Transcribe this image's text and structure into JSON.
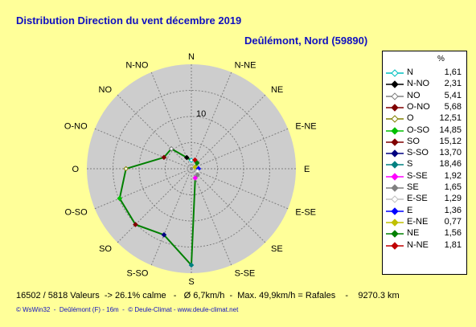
{
  "header": {
    "title": "Distribution Direction du vent   décembre 2019",
    "location": "Deûlémont, Nord (59890)"
  },
  "chart_data": {
    "type": "radar",
    "rlim": [
      0,
      20
    ],
    "ring_label": "10",
    "directions": [
      "N",
      "N-NE",
      "NE",
      "E-NE",
      "E",
      "E-SE",
      "SE",
      "S-SE",
      "S",
      "S-SO",
      "SO",
      "O-SO",
      "O",
      "O-NO",
      "NO",
      "N-NO"
    ],
    "series": [
      {
        "values": [
          1.61,
          1.81,
          1.56,
          0.77,
          1.36,
          1.29,
          1.65,
          1.92,
          18.46,
          13.7,
          15.12,
          14.85,
          12.51,
          5.68,
          5.41,
          2.31
        ]
      }
    ],
    "line_color": "#008000",
    "disc_color": "#cdcdcd",
    "grid_color": "#808080"
  },
  "legend": {
    "unit": "%",
    "items": [
      {
        "name": "N",
        "value": "1,61",
        "color": "#00c0c0",
        "marker": "diamond-open"
      },
      {
        "name": "N-NO",
        "value": "2,31",
        "color": "#000000",
        "marker": "diamond"
      },
      {
        "name": "NO",
        "value": "5,41",
        "color": "#808080",
        "marker": "diamond-open"
      },
      {
        "name": "O-NO",
        "value": "5,68",
        "color": "#800000",
        "marker": "diamond"
      },
      {
        "name": "O",
        "value": "12,51",
        "color": "#808000",
        "marker": "diamond-open"
      },
      {
        "name": "O-SO",
        "value": "14,85",
        "color": "#00c000",
        "marker": "diamond"
      },
      {
        "name": "SO",
        "value": "15,12",
        "color": "#800000",
        "marker": "diamond"
      },
      {
        "name": "S-SO",
        "value": "13,70",
        "color": "#000080",
        "marker": "diamond"
      },
      {
        "name": "S",
        "value": "18,46",
        "color": "#008080",
        "marker": "diamond"
      },
      {
        "name": "S-SE",
        "value": "1,92",
        "color": "#ff00ff",
        "marker": "diamond"
      },
      {
        "name": "SE",
        "value": "1,65",
        "color": "#808080",
        "marker": "diamond"
      },
      {
        "name": "E-SE",
        "value": "1,29",
        "color": "#c0c0c0",
        "marker": "diamond-open"
      },
      {
        "name": "E",
        "value": "1,36",
        "color": "#0000ff",
        "marker": "diamond"
      },
      {
        "name": "E-NE",
        "value": "0,77",
        "color": "#c0c000",
        "marker": "diamond"
      },
      {
        "name": "NE",
        "value": "1,56",
        "color": "#008000",
        "marker": "diamond"
      },
      {
        "name": "N-NE",
        "value": "1,81",
        "color": "#c00000",
        "marker": "diamond"
      }
    ]
  },
  "stats": "16502 / 5818 Valeurs  -> 26.1% calme   -   Ø 6,7km/h  -  Max. 49,9km/h = Rafales    -    9270.3 km",
  "footer": "© WsWin32  -  Deûlémont (F) - 16m  -  © Deule-Climat - www.deule-climat.net"
}
